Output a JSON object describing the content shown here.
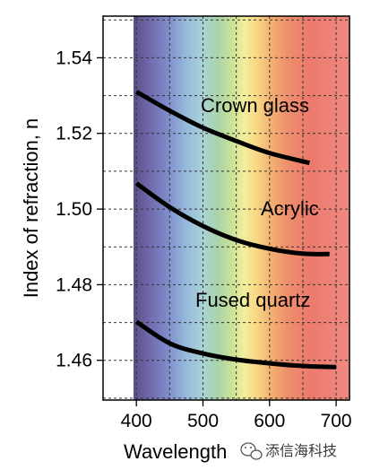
{
  "chart_data": {
    "type": "line",
    "title": "",
    "xlabel": "Wavelength",
    "ylabel": "Index of refraction, n",
    "xlim": [
      350,
      720
    ],
    "ylim": [
      1.4495,
      1.551
    ],
    "xticks": [
      400,
      500,
      600,
      700
    ],
    "xticks_grid": [
      400,
      450,
      500,
      550,
      600,
      650,
      700
    ],
    "yticks": [
      1.46,
      1.48,
      1.5,
      1.52,
      1.54
    ],
    "yticks_grid": [
      1.45,
      1.46,
      1.47,
      1.48,
      1.49,
      1.5,
      1.51,
      1.52,
      1.53,
      1.54,
      1.55
    ],
    "xtick_labels": [
      "400",
      "500",
      "600",
      "700"
    ],
    "ytick_labels": [
      "1.46",
      "1.48",
      "1.50",
      "1.52",
      "1.54"
    ],
    "grid": true,
    "background": "visible spectrum (violet to red)",
    "series": [
      {
        "name": "Crown glass",
        "color": "#000000",
        "x": [
          400,
          450,
          500,
          550,
          600,
          660
        ],
        "y": [
          1.531,
          1.526,
          1.5215,
          1.518,
          1.5148,
          1.5122
        ]
      },
      {
        "name": "Acrylic",
        "color": "#000000",
        "x": [
          400,
          450,
          500,
          550,
          600,
          650,
          690
        ],
        "y": [
          1.5068,
          1.5005,
          1.4955,
          1.4918,
          1.4895,
          1.4882,
          1.4881
        ]
      },
      {
        "name": "Fused quartz",
        "color": "#000000",
        "x": [
          400,
          450,
          500,
          550,
          600,
          650,
          700
        ],
        "y": [
          1.4702,
          1.4645,
          1.4618,
          1.4602,
          1.4592,
          1.4585,
          1.4582
        ]
      }
    ]
  },
  "watermark": {
    "text": "添信海科技",
    "icon": "wechat-icon"
  }
}
